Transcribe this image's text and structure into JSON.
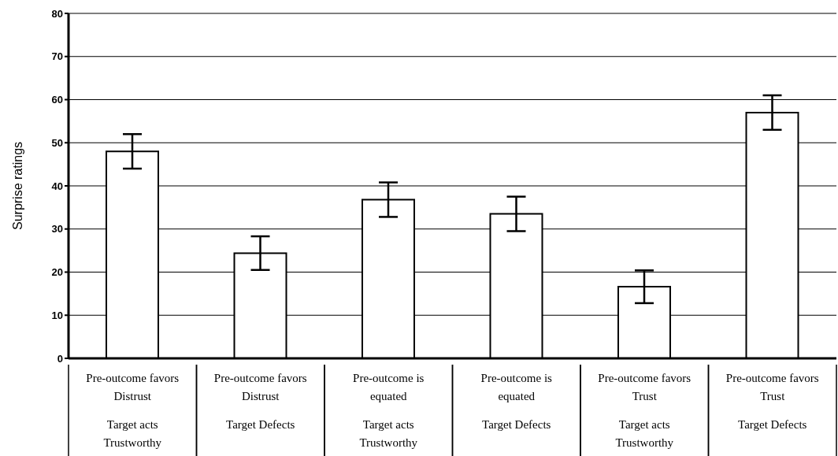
{
  "chart_data": {
    "type": "bar",
    "ylabel": "Surprise ratings",
    "categories": [
      "Pre-outcome favors Distrust\nTarget acts Trustworthy",
      "Pre-outcome favors Distrust\nTarget Defects",
      "Pre-outcome is equated\nTarget acts Trustworthy",
      "Pre-outcome is equated\nTarget Defects",
      "Pre-outcome favors Trust\nTarget acts Trustworthy",
      "Pre-outcome favors Trust\nTarget Defects"
    ],
    "values": [
      48,
      24.4,
      36.8,
      33.5,
      16.6,
      57
    ],
    "errors": [
      4,
      3.9,
      4,
      4,
      3.8,
      4
    ],
    "color": "#ffffff",
    "ylim": [
      0,
      80
    ],
    "yticks": [
      0,
      10,
      20,
      30,
      40,
      50,
      60,
      70,
      80
    ],
    "grid": "y"
  }
}
